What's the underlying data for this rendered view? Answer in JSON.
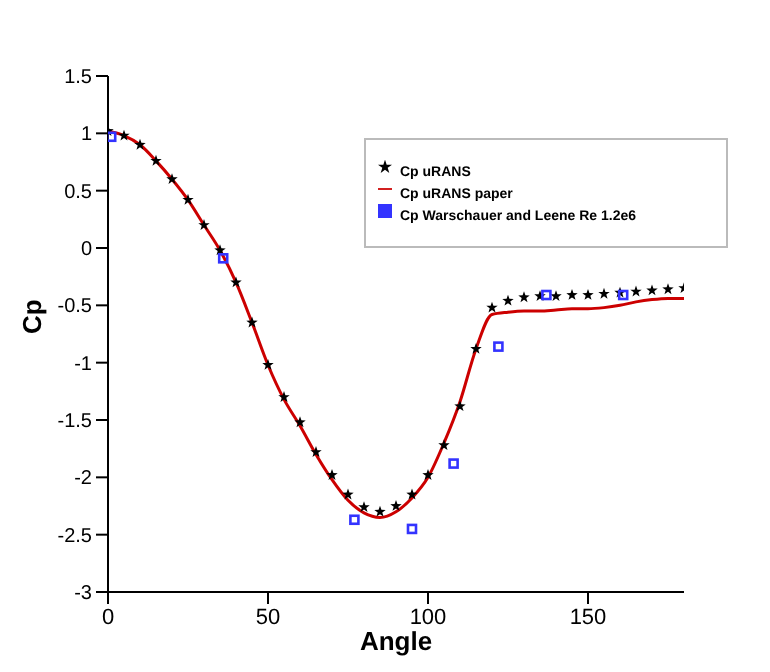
{
  "chart_data": {
    "type": "line",
    "xlabel": "Angle",
    "ylabel": "Cp",
    "xlim": [
      0,
      180
    ],
    "xticks": [
      0,
      50,
      100,
      150
    ],
    "ylim": [
      -3,
      1.5
    ],
    "yticks": [
      -3,
      -2.5,
      -2,
      -1.5,
      -1,
      -0.5,
      0,
      0.5,
      1,
      1.5
    ],
    "legend": "top right",
    "series": [
      {
        "name": "Cp uRANS",
        "type": "scatter",
        "marker": "star",
        "color": "#000000",
        "x": [
          0,
          5,
          10,
          15,
          20,
          25,
          30,
          35,
          40,
          45,
          50,
          55,
          60,
          65,
          70,
          75,
          80,
          85,
          90,
          95,
          100,
          105,
          110,
          115,
          120,
          125,
          130,
          135,
          140,
          145,
          150,
          155,
          160,
          165,
          170,
          175,
          180
        ],
        "values": [
          1.02,
          0.98,
          0.9,
          0.76,
          0.6,
          0.42,
          0.2,
          -0.02,
          -0.3,
          -0.65,
          -1.02,
          -1.3,
          -1.52,
          -1.78,
          -1.98,
          -2.15,
          -2.26,
          -2.3,
          -2.25,
          -2.15,
          -1.98,
          -1.72,
          -1.38,
          -0.88,
          -0.52,
          -0.46,
          -0.43,
          -0.42,
          -0.42,
          -0.41,
          -0.41,
          -0.4,
          -0.39,
          -0.38,
          -0.37,
          -0.36,
          -0.35
        ]
      },
      {
        "name": "Cp uRANS paper",
        "marker": "none",
        "color": "#cc0000",
        "x": [
          0,
          5,
          10,
          15,
          20,
          25,
          30,
          35,
          40,
          45,
          50,
          55,
          60,
          65,
          70,
          75,
          80,
          85,
          90,
          95,
          100,
          105,
          110,
          115,
          120,
          125,
          130,
          135,
          140,
          145,
          150,
          155,
          160,
          165,
          170,
          175,
          180
        ],
        "values": [
          1.02,
          0.98,
          0.9,
          0.76,
          0.6,
          0.42,
          0.2,
          -0.02,
          -0.3,
          -0.65,
          -1.02,
          -1.32,
          -1.55,
          -1.8,
          -2.02,
          -2.2,
          -2.31,
          -2.35,
          -2.3,
          -2.18,
          -2.0,
          -1.7,
          -1.34,
          -0.88,
          -0.58,
          -0.56,
          -0.55,
          -0.55,
          -0.54,
          -0.53,
          -0.53,
          -0.52,
          -0.5,
          -0.47,
          -0.45,
          -0.44,
          -0.44
        ]
      },
      {
        "name": "Cp Warschauer and Leene Re 1.2e6",
        "type": "scatter",
        "marker": "square",
        "color": "#3333ff",
        "x": [
          1,
          36,
          77,
          95,
          108,
          122,
          137,
          161
        ],
        "values": [
          0.97,
          -0.09,
          -2.37,
          -2.45,
          -1.88,
          -0.86,
          -0.41,
          -0.41
        ]
      }
    ]
  }
}
